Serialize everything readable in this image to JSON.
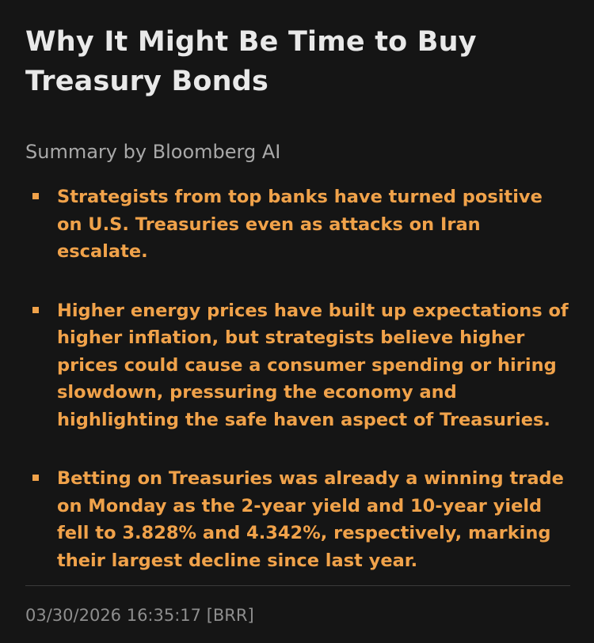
{
  "article": {
    "headline": "Why It Might Be Time to Buy Treasury Bonds",
    "summary_label": "Summary by Bloomberg AI",
    "bullets": [
      "Strategists from top banks have turned positive on U.S. Treasuries even as attacks on Iran escalate.",
      "Higher energy prices have built up expectations of higher inflation, but strategists believe higher prices could cause a consumer spending or hiring slowdown, pressuring the economy and highlighting the safe haven aspect of Treasuries.",
      "Betting on Treasuries was already a winning trade on Monday as the 2-year yield and 10-year yield fell to 3.828% and 4.342%, respectively, marking their largest decline since last year."
    ],
    "timestamp": "03/30/2026 16:35:17 [BRR]"
  },
  "colors": {
    "background": "#151515",
    "headline": "#e9e9e9",
    "accent": "#f0a24a",
    "muted": "#a9a9a9"
  }
}
